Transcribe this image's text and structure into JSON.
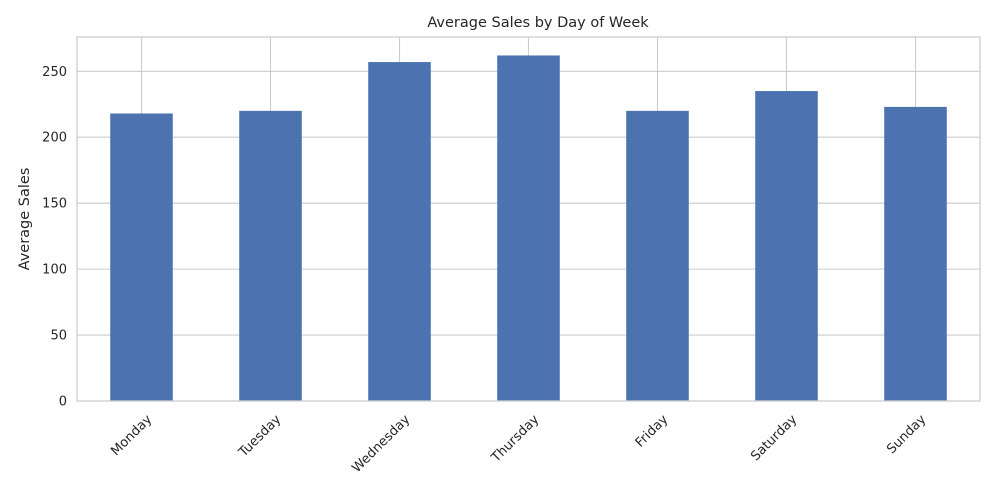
{
  "chart_data": {
    "type": "bar",
    "title": "Average Sales by Day of Week",
    "xlabel": "",
    "ylabel": "Average Sales",
    "categories": [
      "Monday",
      "Tuesday",
      "Wednesday",
      "Thursday",
      "Friday",
      "Saturday",
      "Sunday"
    ],
    "values": [
      218,
      220,
      257,
      262,
      220,
      235,
      223
    ],
    "ylim": [
      0,
      276
    ],
    "yticks": [
      0,
      50,
      100,
      150,
      200,
      250
    ],
    "grid": true,
    "legend": "none",
    "colors": {
      "bar": "#4c72b0",
      "grid": "#cccccc",
      "frame": "#cccccc",
      "text": "#262626",
      "background": "#ffffff"
    }
  }
}
